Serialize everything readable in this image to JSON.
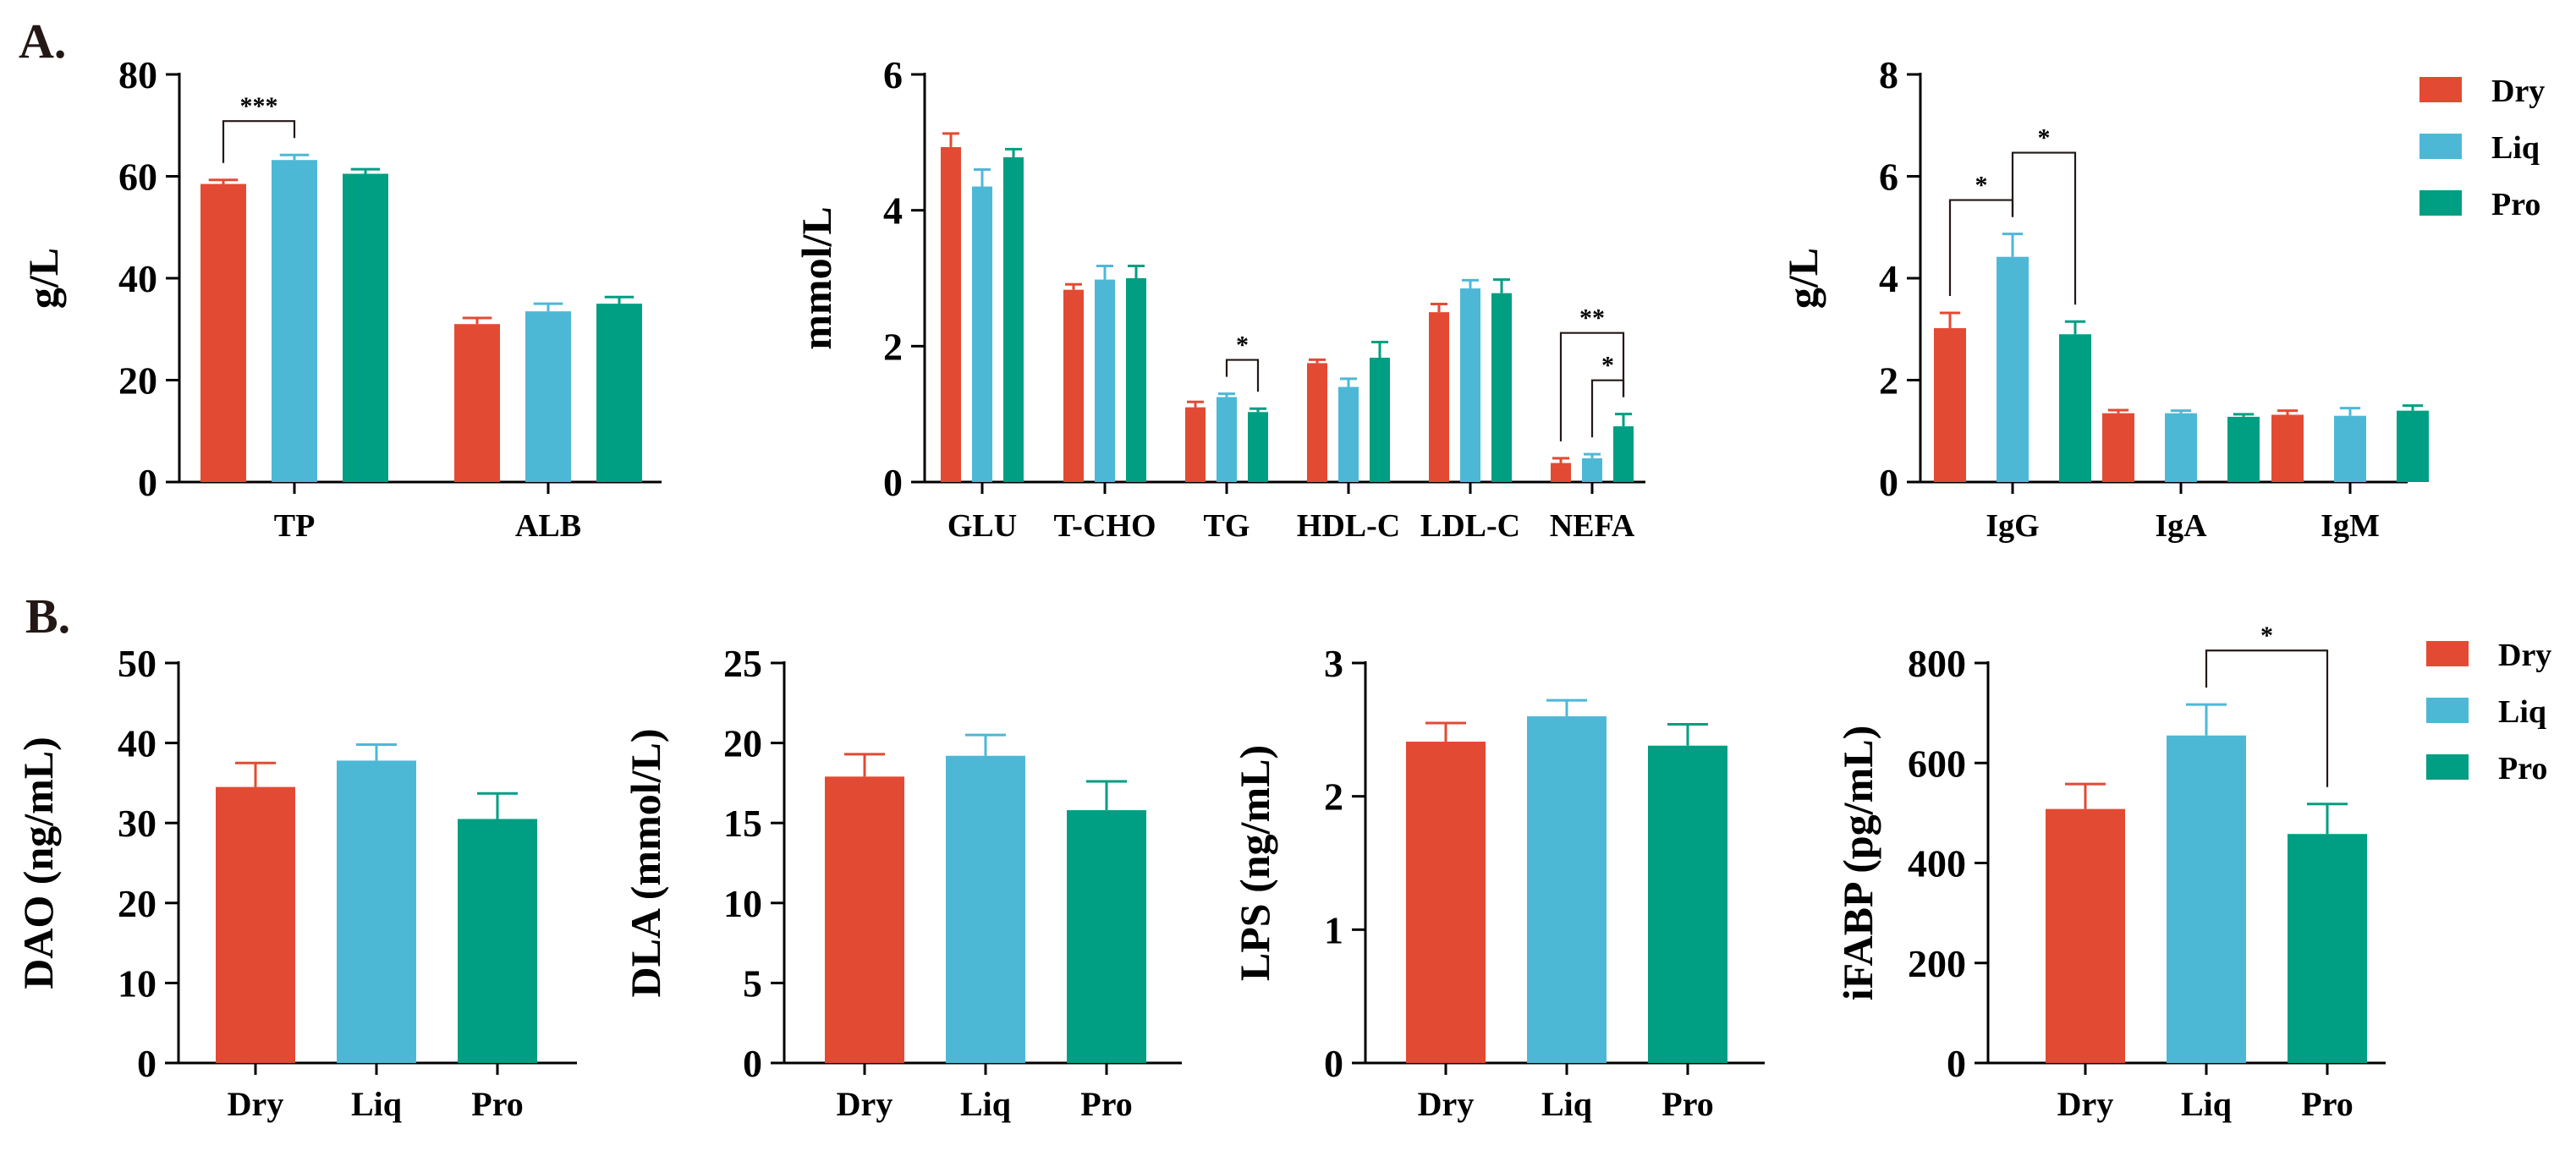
{
  "panel_labels": [
    "A.",
    "B."
  ],
  "legend": {
    "items": [
      "Dry",
      "Liq",
      "Pro"
    ]
  },
  "colors": {
    "Dry": "#e34a33",
    "Liq": "#4db8d6",
    "Pro": "#009e82",
    "axis": "#000000",
    "sig": "#231815"
  },
  "chart_data": [
    {
      "id": "A1",
      "type": "bar",
      "panel": "A.",
      "ylabel": "g/L",
      "yticks": [
        0,
        20,
        40,
        60,
        80
      ],
      "ylim": [
        0,
        80
      ],
      "categories": [
        "TP",
        "ALB"
      ],
      "series": [
        {
          "name": "Dry",
          "values": [
            58.5,
            31.0
          ],
          "errors": [
            0.8,
            1.2
          ]
        },
        {
          "name": "Liq",
          "values": [
            63.2,
            33.5
          ],
          "errors": [
            1.0,
            1.5
          ]
        },
        {
          "name": "Pro",
          "values": [
            60.5,
            35.0
          ],
          "errors": [
            0.9,
            1.3
          ]
        }
      ],
      "significance": [
        {
          "category": "TP",
          "from": "Dry",
          "to": "Liq",
          "label": "***"
        }
      ]
    },
    {
      "id": "A2",
      "type": "bar",
      "panel": "A.",
      "ylabel": "mmol/L",
      "yticks": [
        0,
        2,
        4,
        6
      ],
      "ylim": [
        0,
        6
      ],
      "categories": [
        "GLU",
        "T-CHO",
        "TG",
        "HDL-C",
        "LDL-C",
        "NEFA"
      ],
      "series": [
        {
          "name": "Dry",
          "values": [
            4.93,
            2.83,
            1.1,
            1.75,
            2.5,
            0.28
          ],
          "errors": [
            0.2,
            0.08,
            0.08,
            0.05,
            0.12,
            0.07
          ]
        },
        {
          "name": "Liq",
          "values": [
            4.35,
            2.98,
            1.25,
            1.4,
            2.85,
            0.35
          ],
          "errors": [
            0.25,
            0.2,
            0.05,
            0.12,
            0.12,
            0.06
          ]
        },
        {
          "name": "Pro",
          "values": [
            4.78,
            3.0,
            1.03,
            1.83,
            2.78,
            0.82
          ],
          "errors": [
            0.12,
            0.18,
            0.05,
            0.23,
            0.2,
            0.18
          ]
        }
      ],
      "significance": [
        {
          "category": "TG",
          "from": "Liq",
          "to": "Pro",
          "label": "*"
        },
        {
          "category": "NEFA",
          "from": "Liq",
          "to": "Pro",
          "label": "*"
        },
        {
          "category": "NEFA",
          "from": "Dry",
          "to": "Pro",
          "label": "**"
        }
      ]
    },
    {
      "id": "A3",
      "type": "bar",
      "panel": "A.",
      "ylabel": "g/L",
      "yticks": [
        0,
        2,
        4,
        6,
        8
      ],
      "ylim": [
        0,
        8
      ],
      "categories": [
        "IgG",
        "IgA",
        "IgM"
      ],
      "series": [
        {
          "name": "Dry",
          "values": [
            3.02,
            1.35,
            1.32
          ],
          "errors": [
            0.3,
            0.06,
            0.08
          ]
        },
        {
          "name": "Liq",
          "values": [
            4.42,
            1.35,
            1.3
          ],
          "errors": [
            0.45,
            0.05,
            0.15
          ]
        },
        {
          "name": "Pro",
          "values": [
            2.9,
            1.28,
            1.4
          ],
          "errors": [
            0.25,
            0.05,
            0.1
          ]
        }
      ],
      "significance": [
        {
          "category": "IgG",
          "from": "Dry",
          "to": "Liq",
          "label": "*"
        },
        {
          "category": "IgG",
          "from": "Liq",
          "to": "Pro",
          "label": "*"
        }
      ]
    },
    {
      "id": "B1",
      "type": "bar",
      "panel": "B.",
      "ylabel": "DAO (ng/mL)",
      "yticks": [
        0,
        10,
        20,
        30,
        40,
        50
      ],
      "ylim": [
        0,
        50
      ],
      "categories": [
        "Dry",
        "Liq",
        "Pro"
      ],
      "values": [
        34.5,
        37.8,
        30.5
      ],
      "errors": [
        3.0,
        2.0,
        3.2
      ],
      "significance": []
    },
    {
      "id": "B2",
      "type": "bar",
      "panel": "B.",
      "ylabel": "DLA (mmol/L)",
      "yticks": [
        0,
        5,
        10,
        15,
        20,
        25
      ],
      "ylim": [
        0,
        25
      ],
      "categories": [
        "Dry",
        "Liq",
        "Pro"
      ],
      "values": [
        17.9,
        19.2,
        15.8
      ],
      "errors": [
        1.4,
        1.3,
        1.8
      ],
      "significance": []
    },
    {
      "id": "B3",
      "type": "bar",
      "panel": "B.",
      "ylabel": "LPS (ng/mL)",
      "yticks": [
        0,
        1,
        2,
        3
      ],
      "ylim": [
        0,
        3
      ],
      "categories": [
        "Dry",
        "Liq",
        "Pro"
      ],
      "values": [
        2.41,
        2.6,
        2.38
      ],
      "errors": [
        0.14,
        0.12,
        0.16
      ],
      "significance": []
    },
    {
      "id": "B4",
      "type": "bar",
      "panel": "B.",
      "ylabel": "iFABP (pg/mL)",
      "yticks": [
        0,
        200,
        400,
        600,
        800
      ],
      "ylim": [
        0,
        800
      ],
      "categories": [
        "Dry",
        "Liq",
        "Pro"
      ],
      "values": [
        508,
        655,
        458
      ],
      "errors": [
        50,
        62,
        60
      ],
      "significance": [
        {
          "from": "Liq",
          "to": "Pro",
          "label": "*"
        }
      ]
    }
  ]
}
